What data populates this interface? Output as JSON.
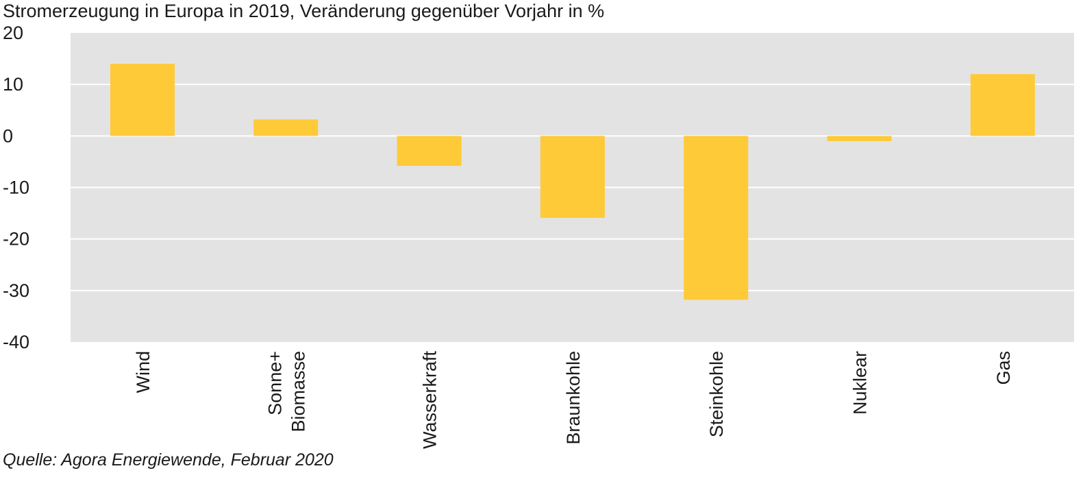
{
  "chart_data": {
    "type": "bar",
    "title": "Stromerzeugung in Europa in 2019, Veränderung gegenüber Vorjahr in %",
    "source": "Quelle: Agora Energiewende, Februar 2020",
    "categories": [
      [
        "Wind"
      ],
      [
        "Sonne+",
        "Biomasse"
      ],
      [
        "Wasserkraft"
      ],
      [
        "Braunkohle"
      ],
      [
        "Steinkohle"
      ],
      [
        "Nuklear"
      ],
      [
        "Gas"
      ]
    ],
    "values": [
      14,
      3.2,
      -5.8,
      -15.9,
      -31.8,
      -1,
      12
    ],
    "ylim": [
      -40,
      20
    ],
    "yticks": [
      20,
      10,
      0,
      -10,
      -20,
      -30,
      -40
    ],
    "xlabel": "",
    "ylabel": "",
    "grid": true,
    "colors": {
      "bar": "#FFCA38",
      "plot_background": "#E3E3E3",
      "gridline": "#FFFFFF"
    }
  }
}
